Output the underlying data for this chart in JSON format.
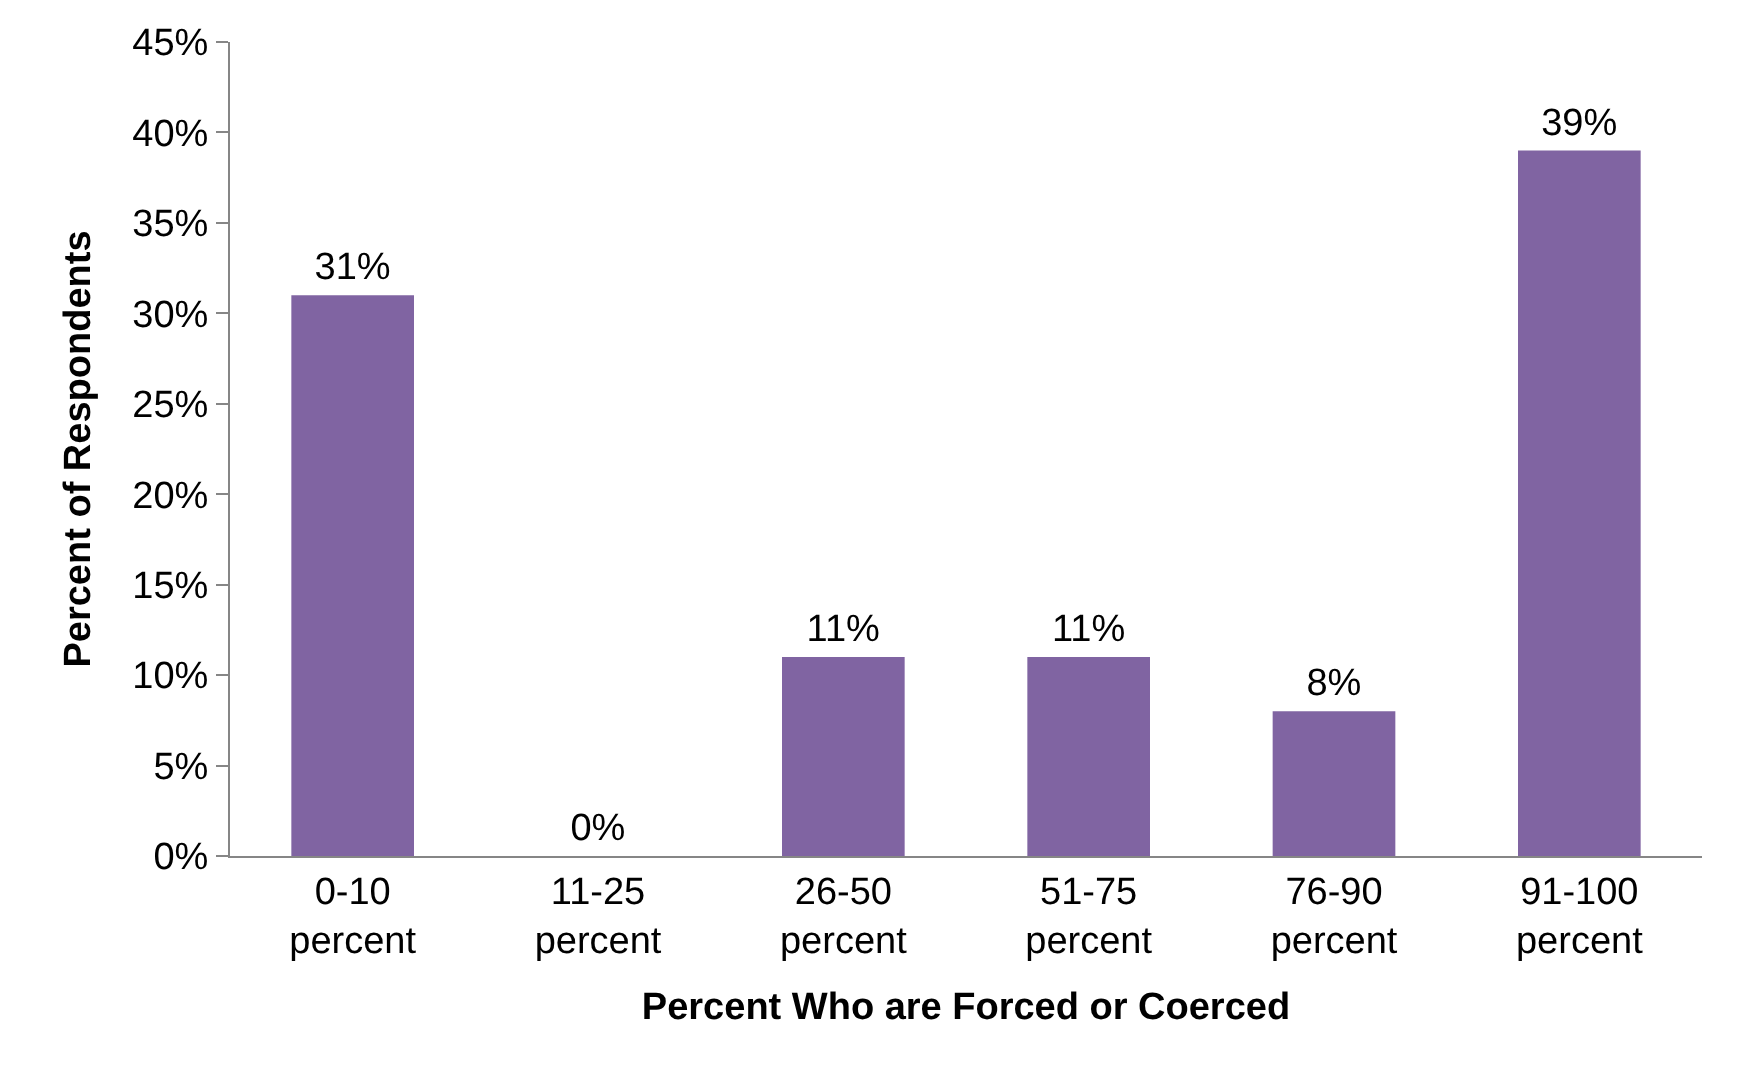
{
  "chart_data": {
    "type": "bar",
    "xlabel": "Percent Who are Forced or Coerced",
    "ylabel": "Percent of Respondents",
    "categories": [
      "0-10 percent",
      "11-25 percent",
      "26-50 percent",
      "51-75 percent",
      "76-90 percent",
      "91-100 percent"
    ],
    "values": [
      31,
      0,
      11,
      11,
      8,
      39
    ],
    "value_labels": [
      "31%",
      "0%",
      "11%",
      "11%",
      "8%",
      "39%"
    ],
    "color": "#8064a2",
    "ylim": [
      0,
      45
    ],
    "yticks": [
      {
        "value": 0,
        "label": "0%"
      },
      {
        "value": 5,
        "label": "5%"
      },
      {
        "value": 10,
        "label": "10%"
      },
      {
        "value": 15,
        "label": "15%"
      },
      {
        "value": 20,
        "label": "20%"
      },
      {
        "value": 25,
        "label": "25%"
      },
      {
        "value": 30,
        "label": "30%"
      },
      {
        "value": 35,
        "label": "35%"
      },
      {
        "value": 40,
        "label": "40%"
      },
      {
        "value": 45,
        "label": "45%"
      }
    ]
  }
}
